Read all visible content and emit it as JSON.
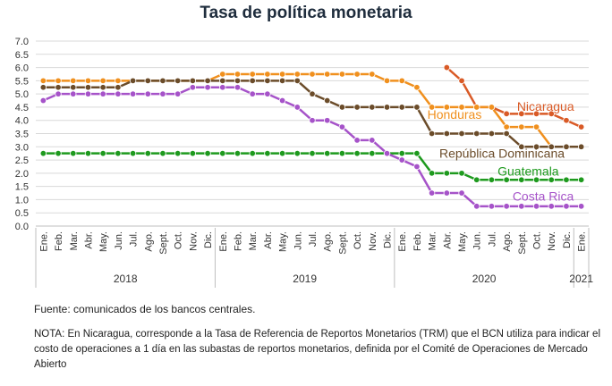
{
  "chart_data": {
    "type": "line",
    "title": "Tasa de política monetaria",
    "ylim": [
      0,
      7
    ],
    "yticks": [
      "0.0",
      "0.5",
      "1.0",
      "1.5",
      "2.0",
      "2.5",
      "3.0",
      "3.5",
      "4.0",
      "4.5",
      "5.0",
      "5.5",
      "6.0",
      "6.5",
      "7.0"
    ],
    "x": [
      "Ene.",
      "Feb.",
      "Mar.",
      "Abr.",
      "May.",
      "Jun.",
      "Jul.",
      "Ago.",
      "Sept.",
      "Oct.",
      "Nov.",
      "Dic.",
      "Ene.",
      "Feb.",
      "Mar.",
      "Abr.",
      "May.",
      "Jun.",
      "Jul.",
      "Ago.",
      "Sept.",
      "Oct.",
      "Nov.",
      "Dic.",
      "Ene.",
      "Feb.",
      "Mar.",
      "Abr.",
      "May.",
      "Jun.",
      "Jul.",
      "Ago.",
      "Sept.",
      "Oct.",
      "Nov.",
      "Dic.",
      "Ene."
    ],
    "years": [
      {
        "label": "2018",
        "start": 0,
        "end": 11
      },
      {
        "label": "2019",
        "start": 12,
        "end": 23
      },
      {
        "label": "2020",
        "start": 24,
        "end": 35
      },
      {
        "label": "2021",
        "start": 36,
        "end": 36
      }
    ],
    "grid": true,
    "series": [
      {
        "name": "Nicaragua",
        "color": "#d95a26",
        "values": [
          null,
          null,
          null,
          null,
          null,
          null,
          null,
          null,
          null,
          null,
          null,
          null,
          null,
          null,
          null,
          null,
          null,
          null,
          null,
          null,
          null,
          null,
          null,
          null,
          null,
          null,
          null,
          6.0,
          5.5,
          4.5,
          4.5,
          4.25,
          4.25,
          4.25,
          4.25,
          4.0,
          3.75
        ]
      },
      {
        "name": "Honduras",
        "color": "#f0901e",
        "values": [
          5.5,
          5.5,
          5.5,
          5.5,
          5.5,
          5.5,
          5.5,
          5.5,
          5.5,
          5.5,
          5.5,
          5.5,
          5.75,
          5.75,
          5.75,
          5.75,
          5.75,
          5.75,
          5.75,
          5.75,
          5.75,
          5.75,
          5.75,
          5.5,
          5.5,
          5.25,
          4.5,
          4.5,
          4.5,
          4.5,
          4.5,
          3.75,
          3.75,
          3.75,
          3.0,
          3.0,
          3.0
        ]
      },
      {
        "name": "República Dominicana",
        "color": "#6b4c2a",
        "values": [
          5.25,
          5.25,
          5.25,
          5.25,
          5.25,
          5.25,
          5.5,
          5.5,
          5.5,
          5.5,
          5.5,
          5.5,
          5.5,
          5.5,
          5.5,
          5.5,
          5.5,
          5.5,
          5.0,
          4.75,
          4.5,
          4.5,
          4.5,
          4.5,
          4.5,
          4.5,
          3.5,
          3.5,
          3.5,
          3.5,
          3.5,
          3.5,
          3.0,
          3.0,
          3.0,
          3.0,
          3.0
        ]
      },
      {
        "name": "Guatemala",
        "color": "#1e9a1e",
        "values": [
          2.75,
          2.75,
          2.75,
          2.75,
          2.75,
          2.75,
          2.75,
          2.75,
          2.75,
          2.75,
          2.75,
          2.75,
          2.75,
          2.75,
          2.75,
          2.75,
          2.75,
          2.75,
          2.75,
          2.75,
          2.75,
          2.75,
          2.75,
          2.75,
          2.75,
          2.75,
          2.0,
          2.0,
          2.0,
          1.75,
          1.75,
          1.75,
          1.75,
          1.75,
          1.75,
          1.75,
          1.75
        ]
      },
      {
        "name": "Costa Rica",
        "color": "#a653c9",
        "values": [
          4.75,
          5.0,
          5.0,
          5.0,
          5.0,
          5.0,
          5.0,
          5.0,
          5.0,
          5.0,
          5.25,
          5.25,
          5.25,
          5.25,
          5.0,
          5.0,
          4.75,
          4.5,
          4.0,
          4.0,
          3.75,
          3.25,
          3.25,
          2.75,
          2.5,
          2.25,
          1.25,
          1.25,
          1.25,
          0.75,
          0.75,
          0.75,
          0.75,
          0.75,
          0.75,
          0.75,
          0.75
        ]
      }
    ]
  },
  "footer": {
    "source": "Fuente: comunicados de los bancos centrales.",
    "note": "NOTA: En Nicaragua, corresponde a la Tasa de Referencia de Reportos Monetarios (TRM) que el BCN utiliza para indicar el costo de operaciones a 1 día en las subastas de reportos monetarios, definida por el Comité de Operaciones de Mercado Abierto"
  }
}
